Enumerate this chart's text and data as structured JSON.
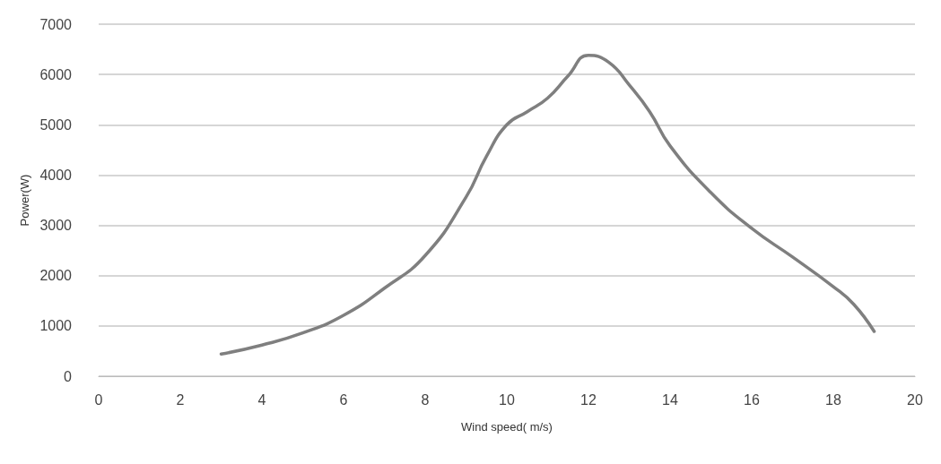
{
  "chart_data": {
    "type": "line",
    "xlabel": "Wind speed( m/s)",
    "ylabel": "Power(W)",
    "x": [
      3,
      4,
      5,
      6,
      7,
      8,
      9,
      9.5,
      10,
      10.5,
      11,
      11.5,
      12,
      12.5,
      13,
      13.5,
      14,
      15,
      16,
      17,
      18,
      18.5,
      19
    ],
    "series": [
      {
        "color": "#7f7f7f",
        "values": [
          440,
          620,
          860,
          1210,
          1750,
          2400,
          3560,
          4370,
          5000,
          5260,
          5530,
          5970,
          6380,
          6240,
          5790,
          5260,
          4580,
          3650,
          2940,
          2370,
          1780,
          1430,
          890
        ]
      }
    ],
    "xlim": [
      0,
      20
    ],
    "xticks": [
      0,
      2,
      4,
      6,
      8,
      10,
      12,
      14,
      16,
      18,
      20
    ],
    "ylim": [
      0,
      7000
    ],
    "yticks": [
      0,
      1000,
      2000,
      3000,
      4000,
      5000,
      6000,
      7000
    ],
    "grid": "y",
    "marker": "none",
    "line_style": "solid"
  }
}
